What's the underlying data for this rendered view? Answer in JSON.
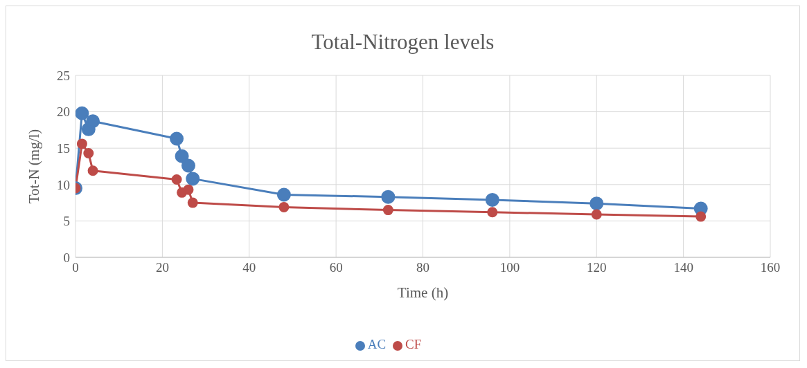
{
  "chart_data": {
    "type": "line",
    "title": "Total-Nitrogen levels",
    "xlabel": "Time (h)",
    "ylabel": "Tot-N  (mg/l)",
    "x": [
      0,
      1.5,
      3,
      4,
      23.3,
      24.5,
      26,
      27,
      48,
      72,
      96,
      120,
      144
    ],
    "series": [
      {
        "name": "AC",
        "color": "#4a7ebb",
        "values": [
          9.5,
          19.8,
          17.6,
          18.7,
          16.3,
          13.9,
          12.6,
          10.8,
          8.6,
          8.3,
          7.9,
          7.4,
          6.7
        ]
      },
      {
        "name": "CF",
        "color": "#be4b48",
        "values": [
          9.5,
          15.6,
          14.3,
          11.9,
          10.7,
          8.9,
          9.3,
          7.5,
          6.9,
          6.5,
          6.2,
          5.9,
          5.6
        ]
      }
    ],
    "xlim": [
      0,
      160
    ],
    "xticks": [
      0,
      20,
      40,
      60,
      80,
      100,
      120,
      140,
      160
    ],
    "ylim": [
      0,
      25
    ],
    "yticks": [
      0,
      5,
      10,
      15,
      20,
      25
    ],
    "grid": true,
    "legend": "bottom",
    "marker": "circle",
    "line_style": "solid"
  }
}
